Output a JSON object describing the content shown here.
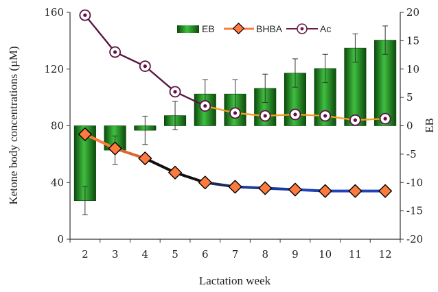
{
  "chart_data": {
    "type": "bar+line",
    "title": "",
    "xlabel": "Lactation week",
    "ylabel": "Ketone body concentrations (µM)",
    "y2label": "EB",
    "categories": [
      "2",
      "3",
      "4",
      "5",
      "6",
      "7",
      "8",
      "9",
      "10",
      "11",
      "12"
    ],
    "ylim": [
      0,
      160
    ],
    "y_ticks": [
      "0",
      "40",
      "80",
      "120",
      "160"
    ],
    "y2lim": [
      -20,
      20
    ],
    "y2_ticks": [
      "-20",
      "-15",
      "-10",
      "-5",
      "0",
      "5",
      "10",
      "15",
      "20"
    ],
    "grid": false,
    "legend_position": "top-right",
    "series": [
      {
        "name": "EB",
        "type": "bar",
        "axis": "right",
        "values": [
          -13.2,
          -4.3,
          -0.8,
          1.8,
          5.6,
          5.6,
          6.6,
          9.3,
          10.1,
          13.7,
          15.1
        ],
        "errors": [
          2.5,
          2.5,
          2.5,
          2.5,
          2.5,
          2.5,
          2.5,
          2.5,
          2.5,
          2.5,
          2.5
        ],
        "color": "#1b7f1b"
      },
      {
        "name": "BHBA",
        "type": "line",
        "axis": "left",
        "values": [
          74,
          64,
          57,
          47,
          40,
          37,
          36,
          35,
          34,
          34,
          34
        ],
        "color": "#ff7a3d"
      },
      {
        "name": "Ac",
        "type": "line",
        "axis": "left",
        "values": [
          158,
          132,
          122,
          104,
          94,
          89,
          87,
          88,
          87,
          84,
          85
        ],
        "color": "#6b1a4a"
      }
    ]
  }
}
